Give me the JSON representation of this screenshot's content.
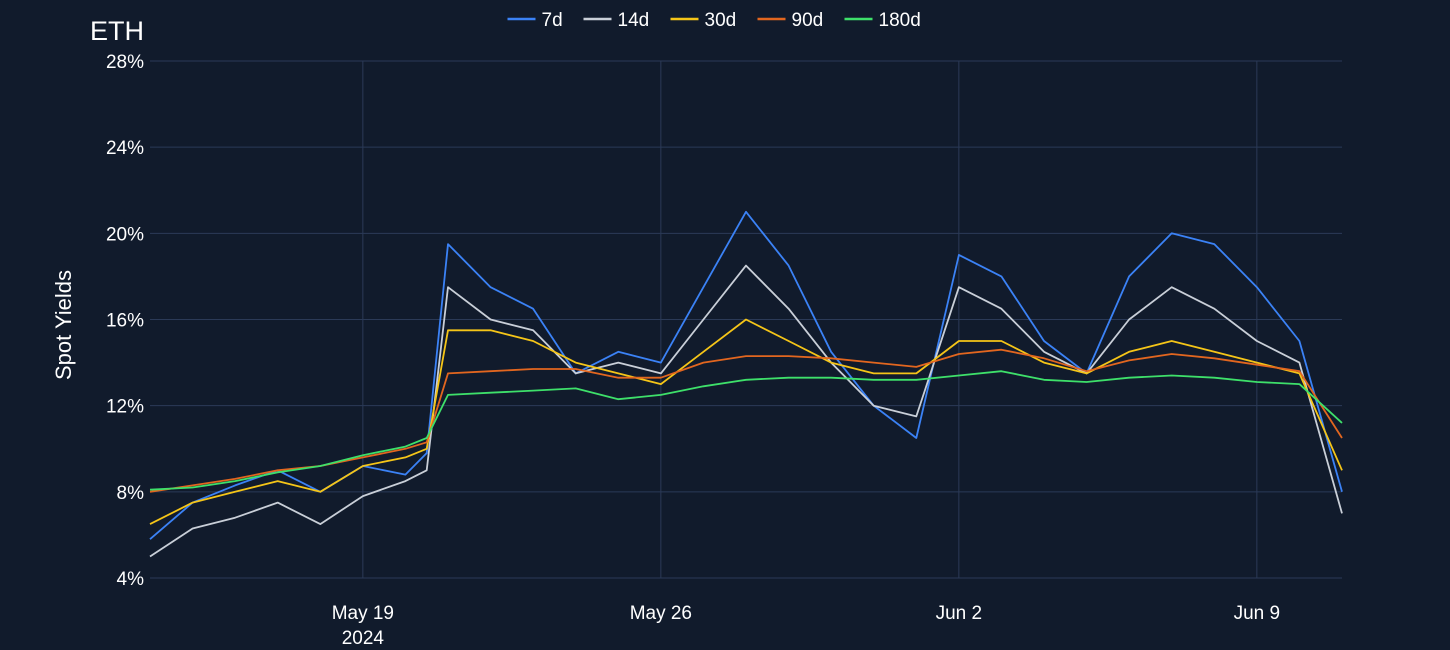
{
  "chart_data": {
    "type": "line",
    "title": "ETH",
    "ylabel": "Spot Yields",
    "xlabel": "",
    "ylim": [
      4,
      28
    ],
    "yticks": [
      4,
      8,
      12,
      16,
      20,
      24,
      28
    ],
    "ytick_labels": [
      "4%",
      "8%",
      "12%",
      "16%",
      "20%",
      "24%",
      "28%"
    ],
    "xlim": [
      "2024-05-14",
      "2024-06-11"
    ],
    "xticks": [
      "2024-05-19",
      "2024-05-26",
      "2024-06-02",
      "2024-06-09"
    ],
    "xtick_labels": [
      "May 19",
      "May 26",
      "Jun 2",
      "Jun 9"
    ],
    "xtick_year_label": "2024",
    "grid": true,
    "legend_position": "top-center",
    "series": [
      {
        "name": "7d",
        "color": "#3b82f6",
        "x": [
          "2024-05-14",
          "2024-05-15",
          "2024-05-16",
          "2024-05-17",
          "2024-05-18",
          "2024-05-19",
          "2024-05-20",
          "2024-05-20T12:00",
          "2024-05-21",
          "2024-05-22",
          "2024-05-23",
          "2024-05-24",
          "2024-05-25",
          "2024-05-26",
          "2024-05-27",
          "2024-05-28",
          "2024-05-29",
          "2024-05-30",
          "2024-05-31",
          "2024-06-01",
          "2024-06-02",
          "2024-06-03",
          "2024-06-04",
          "2024-06-05",
          "2024-06-06",
          "2024-06-07",
          "2024-06-08",
          "2024-06-09",
          "2024-06-10",
          "2024-06-11"
        ],
        "values": [
          5.8,
          7.5,
          8.3,
          9.0,
          8.0,
          9.2,
          8.8,
          9.8,
          19.5,
          17.5,
          16.5,
          13.5,
          14.5,
          14.0,
          17.5,
          21.0,
          18.5,
          14.5,
          12.0,
          10.5,
          19.0,
          18.0,
          15.0,
          13.5,
          18.0,
          20.0,
          19.5,
          17.5,
          15.0,
          8.0
        ]
      },
      {
        "name": "14d",
        "color": "#c9cfd8",
        "x": [
          "2024-05-14",
          "2024-05-15",
          "2024-05-16",
          "2024-05-17",
          "2024-05-18",
          "2024-05-19",
          "2024-05-20",
          "2024-05-20T12:00",
          "2024-05-21",
          "2024-05-22",
          "2024-05-23",
          "2024-05-24",
          "2024-05-25",
          "2024-05-26",
          "2024-05-27",
          "2024-05-28",
          "2024-05-29",
          "2024-05-30",
          "2024-05-31",
          "2024-06-01",
          "2024-06-02",
          "2024-06-03",
          "2024-06-04",
          "2024-06-05",
          "2024-06-06",
          "2024-06-07",
          "2024-06-08",
          "2024-06-09",
          "2024-06-10",
          "2024-06-11"
        ],
        "values": [
          5.0,
          6.3,
          6.8,
          7.5,
          6.5,
          7.8,
          8.5,
          9.0,
          17.5,
          16.0,
          15.5,
          13.5,
          14.0,
          13.5,
          16.0,
          18.5,
          16.5,
          14.0,
          12.0,
          11.5,
          17.5,
          16.5,
          14.5,
          13.5,
          16.0,
          17.5,
          16.5,
          15.0,
          14.0,
          7.0
        ]
      },
      {
        "name": "30d",
        "color": "#f5c518",
        "x": [
          "2024-05-14",
          "2024-05-15",
          "2024-05-16",
          "2024-05-17",
          "2024-05-18",
          "2024-05-19",
          "2024-05-20",
          "2024-05-20T12:00",
          "2024-05-21",
          "2024-05-22",
          "2024-05-23",
          "2024-05-24",
          "2024-05-25",
          "2024-05-26",
          "2024-05-27",
          "2024-05-28",
          "2024-05-29",
          "2024-05-30",
          "2024-05-31",
          "2024-06-01",
          "2024-06-02",
          "2024-06-03",
          "2024-06-04",
          "2024-06-05",
          "2024-06-06",
          "2024-06-07",
          "2024-06-08",
          "2024-06-09",
          "2024-06-10",
          "2024-06-11"
        ],
        "values": [
          6.5,
          7.5,
          8.0,
          8.5,
          8.0,
          9.2,
          9.6,
          10.0,
          15.5,
          15.5,
          15.0,
          14.0,
          13.5,
          13.0,
          14.5,
          16.0,
          15.0,
          14.0,
          13.5,
          13.5,
          15.0,
          15.0,
          14.0,
          13.5,
          14.5,
          15.0,
          14.5,
          14.0,
          13.5,
          9.0
        ]
      },
      {
        "name": "90d",
        "color": "#e2661f",
        "x": [
          "2024-05-14",
          "2024-05-15",
          "2024-05-16",
          "2024-05-17",
          "2024-05-18",
          "2024-05-19",
          "2024-05-20",
          "2024-05-20T12:00",
          "2024-05-21",
          "2024-05-22",
          "2024-05-23",
          "2024-05-24",
          "2024-05-25",
          "2024-05-26",
          "2024-05-27",
          "2024-05-28",
          "2024-05-29",
          "2024-05-30",
          "2024-05-31",
          "2024-06-01",
          "2024-06-02",
          "2024-06-03",
          "2024-06-04",
          "2024-06-05",
          "2024-06-06",
          "2024-06-07",
          "2024-06-08",
          "2024-06-09",
          "2024-06-10",
          "2024-06-11"
        ],
        "values": [
          8.0,
          8.3,
          8.6,
          9.0,
          9.2,
          9.6,
          10.0,
          10.3,
          13.5,
          13.6,
          13.7,
          13.7,
          13.3,
          13.3,
          14.0,
          14.3,
          14.3,
          14.2,
          14.0,
          13.8,
          14.4,
          14.6,
          14.2,
          13.6,
          14.1,
          14.4,
          14.2,
          13.9,
          13.6,
          10.5
        ]
      },
      {
        "name": "180d",
        "color": "#3ee06a",
        "x": [
          "2024-05-14",
          "2024-05-15",
          "2024-05-16",
          "2024-05-17",
          "2024-05-18",
          "2024-05-19",
          "2024-05-20",
          "2024-05-20T12:00",
          "2024-05-21",
          "2024-05-22",
          "2024-05-23",
          "2024-05-24",
          "2024-05-25",
          "2024-05-26",
          "2024-05-27",
          "2024-05-28",
          "2024-05-29",
          "2024-05-30",
          "2024-05-31",
          "2024-06-01",
          "2024-06-02",
          "2024-06-03",
          "2024-06-04",
          "2024-06-05",
          "2024-06-06",
          "2024-06-07",
          "2024-06-08",
          "2024-06-09",
          "2024-06-10",
          "2024-06-11"
        ],
        "values": [
          8.1,
          8.2,
          8.5,
          8.9,
          9.2,
          9.7,
          10.1,
          10.5,
          12.5,
          12.6,
          12.7,
          12.8,
          12.3,
          12.5,
          12.9,
          13.2,
          13.3,
          13.3,
          13.2,
          13.2,
          13.4,
          13.6,
          13.2,
          13.1,
          13.3,
          13.4,
          13.3,
          13.1,
          13.0,
          11.2
        ]
      }
    ]
  }
}
